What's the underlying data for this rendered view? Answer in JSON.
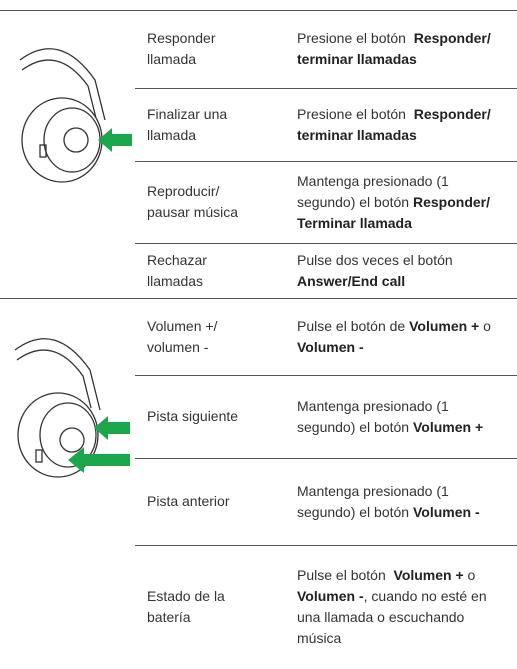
{
  "sections": [
    {
      "rows": [
        {
          "action": [
            "Responder",
            "llamada"
          ],
          "description": [
            [
              {
                "text": "Presione el botón  "
              },
              {
                "text": "Responder/",
                "bold": true
              }
            ],
            [
              {
                "text": "terminar llamadas",
                "bold": true
              }
            ]
          ]
        },
        {
          "action": [
            "Finalizar una",
            "llamada"
          ],
          "description": [
            [
              {
                "text": "Presione el botón  "
              },
              {
                "text": "Responder/",
                "bold": true
              }
            ],
            [
              {
                "text": "terminar llamadas",
                "bold": true
              }
            ]
          ]
        },
        {
          "action": [
            "Reproducir/",
            "pausar música"
          ],
          "description": [
            [
              {
                "text": "Mantenga presionado (1"
              }
            ],
            [
              {
                "text": "segundo) el botón "
              },
              {
                "text": "Responder/",
                "bold": true
              }
            ],
            [
              {
                "text": "Terminar llamada",
                "bold": true
              }
            ]
          ]
        },
        {
          "action": [
            "Rechazar",
            "llamadas"
          ],
          "description": [
            [
              {
                "text": "Pulse dos veces el botón"
              }
            ],
            [
              {
                "text": "Answer/End call",
                "bold": true
              }
            ]
          ]
        }
      ]
    },
    {
      "rows": [
        {
          "action": [
            "Volumen +/",
            "volumen -"
          ],
          "description": [
            [
              {
                "text": "Pulse el botón de "
              },
              {
                "text": "Volumen +",
                "bold": true
              },
              {
                "text": " o"
              }
            ],
            [
              {
                "text": "Volumen -",
                "bold": true
              }
            ]
          ]
        },
        {
          "action": [
            "Pista siguiente"
          ],
          "description": [
            [
              {
                "text": "Mantenga presionado (1"
              }
            ],
            [
              {
                "text": "segundo) el botón "
              },
              {
                "text": "Volumen +",
                "bold": true
              }
            ]
          ]
        },
        {
          "action": [
            "Pista anterior"
          ],
          "description": [
            [
              {
                "text": "Mantenga presionado (1"
              }
            ],
            [
              {
                "text": "segundo) el botón "
              },
              {
                "text": "Volumen -",
                "bold": true
              }
            ]
          ]
        },
        {
          "action": [
            "Estado de la",
            "batería"
          ],
          "description": [
            [
              {
                "text": "Pulse el botón  "
              },
              {
                "text": "Volumen +",
                "bold": true
              },
              {
                "text": " o"
              }
            ],
            [
              {
                "text": "Volumen -",
                "bold": true
              },
              {
                "text": ", cuando no esté en"
              }
            ],
            [
              {
                "text": "una llamada o escuchando"
              }
            ],
            [
              {
                "text": "música"
              }
            ]
          ]
        }
      ]
    }
  ]
}
